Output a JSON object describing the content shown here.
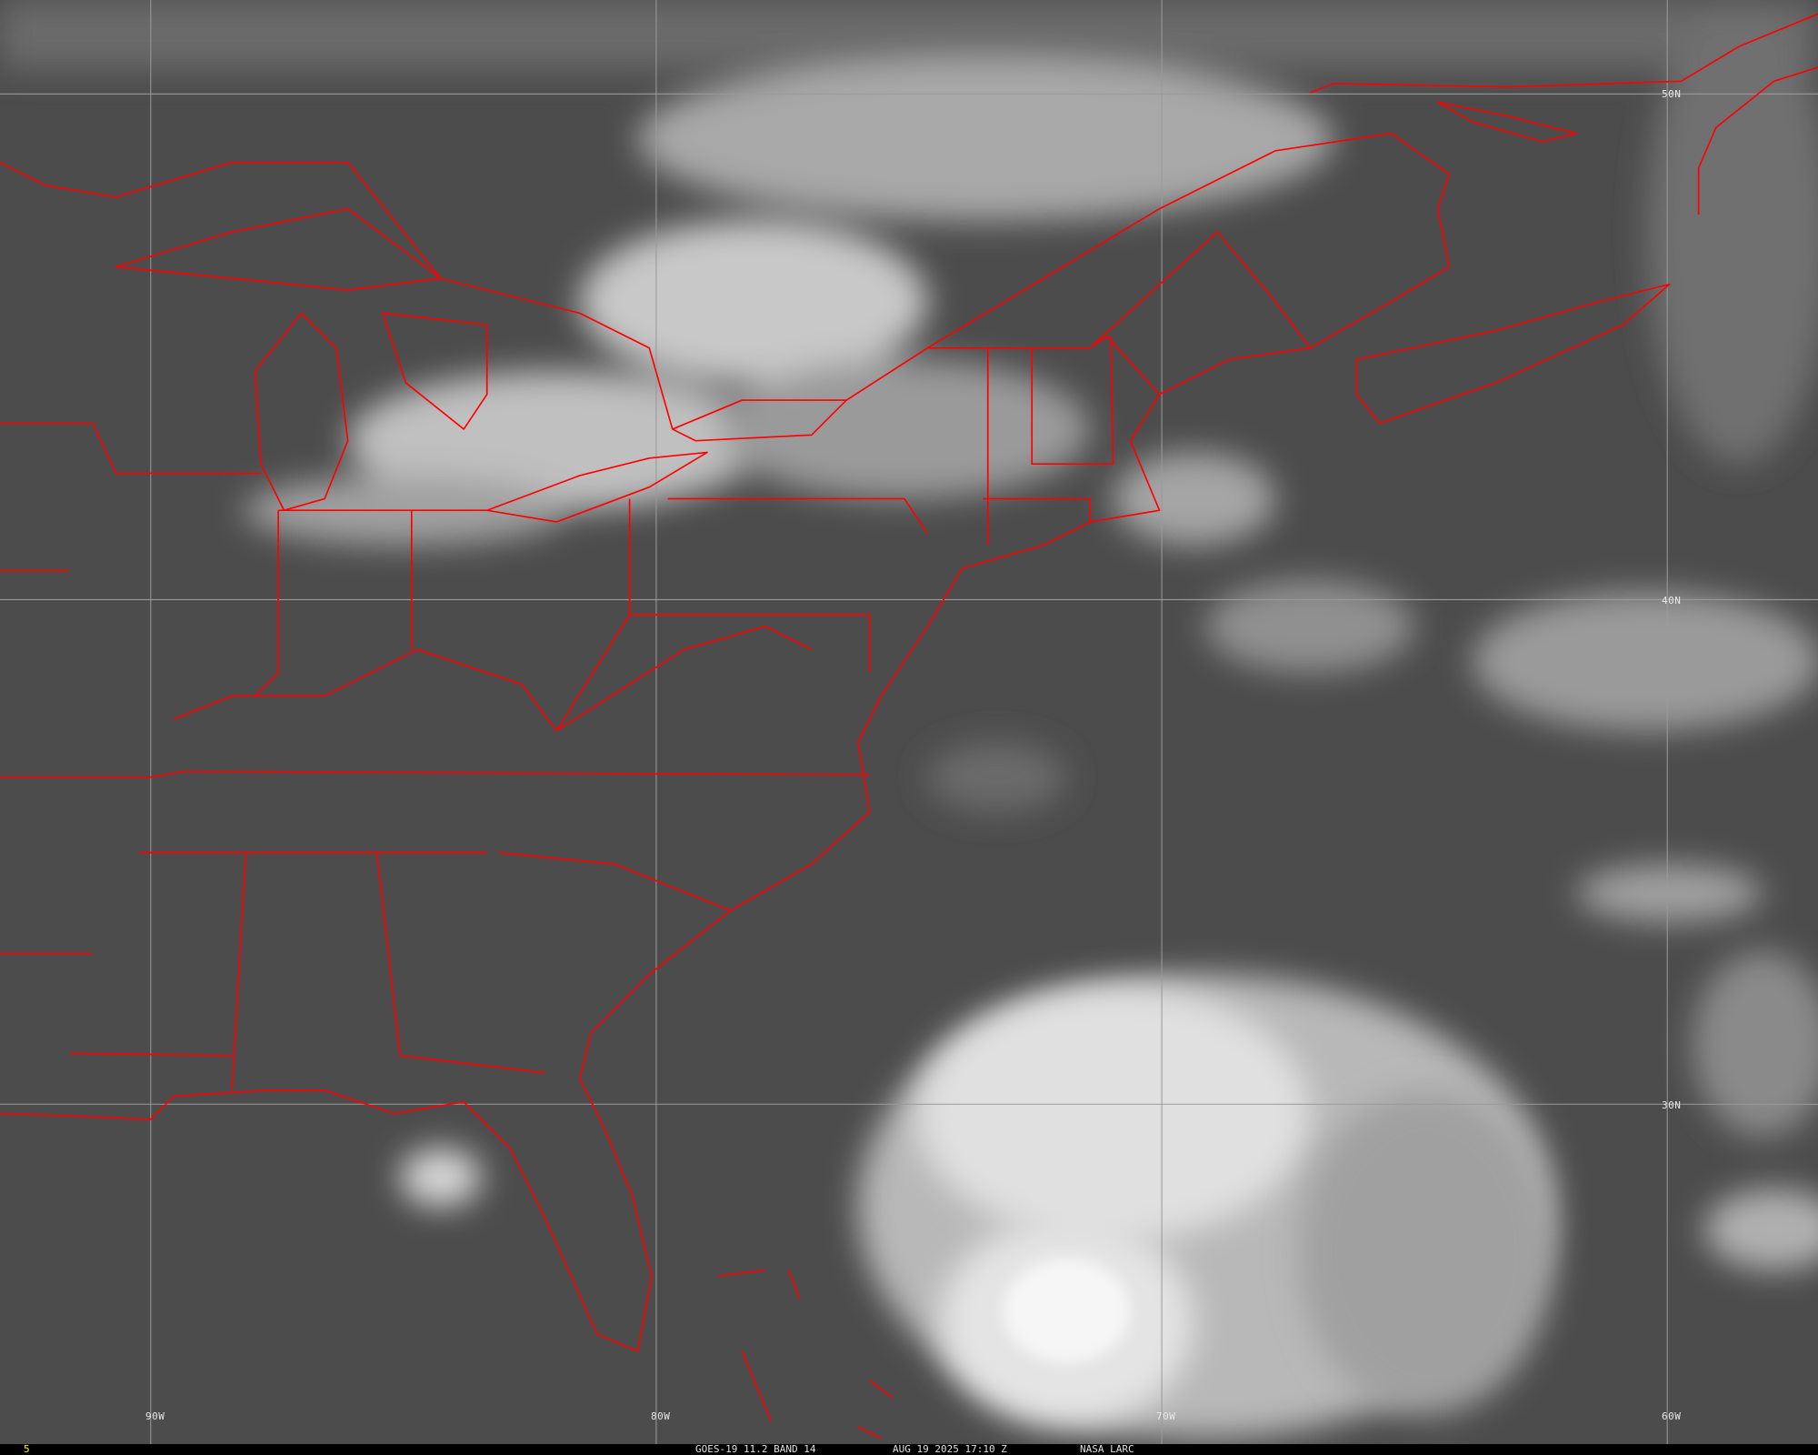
{
  "image": {
    "satellite": "GOES-19",
    "product": "GOES-19 11.2 BAND 14",
    "datetime": "AUG 19 2025 17:10 Z",
    "credit": "NASA LARC",
    "frame": "5"
  },
  "grid": {
    "longitudes": [
      "90W",
      "80W",
      "70W",
      "60W"
    ],
    "latitudes": [
      "50N",
      "40N",
      "30N"
    ]
  },
  "colors": {
    "borders": "#ff0000",
    "grid": "#9a9a9a",
    "frame_number": "#ffff00",
    "background": "#4a4a4a"
  }
}
